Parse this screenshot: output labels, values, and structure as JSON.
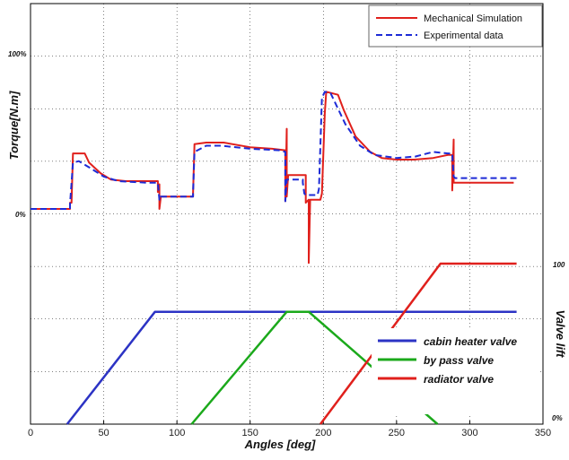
{
  "chart_data": {
    "type": "line",
    "xlabel": "Angles [deg]",
    "ylabel": "Torque[N.m]",
    "ylabel_right": "Valve lift",
    "xlim": [
      0,
      350
    ],
    "x_ticks": [
      0,
      50,
      100,
      150,
      200,
      250,
      300,
      350
    ],
    "grid": true,
    "torque_panel": {
      "ylim": [
        -0.35,
        1.05
      ],
      "percent_labels": [
        "100%",
        "0%"
      ],
      "legend_position": "top-right",
      "series": [
        {
          "name": "Mechanical Simulation",
          "color": "#e0201c",
          "style": "solid",
          "points": [
            [
              0,
              0
            ],
            [
              27,
              0
            ],
            [
              27,
              0.04
            ],
            [
              28,
              0.04
            ],
            [
              29,
              0.36
            ],
            [
              37,
              0.36
            ],
            [
              40,
              0.3
            ],
            [
              48,
              0.23
            ],
            [
              55,
              0.19
            ],
            [
              65,
              0.18
            ],
            [
              87,
              0.18
            ],
            [
              87,
              0.11
            ],
            [
              88,
              0.16
            ],
            [
              88,
              0.0
            ],
            [
              89,
              0.08
            ],
            [
              111,
              0.08
            ],
            [
              111,
              0.1
            ],
            [
              112,
              0.42
            ],
            [
              120,
              0.43
            ],
            [
              132,
              0.43
            ],
            [
              150,
              0.4
            ],
            [
              165,
              0.39
            ],
            [
              174,
              0.38
            ],
            [
              174,
              0.05
            ],
            [
              175,
              0.52
            ],
            [
              175,
              0.08
            ],
            [
              176,
              0.22
            ],
            [
              188,
              0.22
            ],
            [
              188,
              0.04
            ],
            [
              190,
              0.06
            ],
            [
              190,
              -0.35
            ],
            [
              191,
              0.06
            ],
            [
              198,
              0.06
            ],
            [
              199,
              0.1
            ],
            [
              201,
              0.62
            ],
            [
              202,
              0.76
            ],
            [
              210,
              0.74
            ],
            [
              214,
              0.64
            ],
            [
              222,
              0.47
            ],
            [
              232,
              0.37
            ],
            [
              240,
              0.33
            ],
            [
              250,
              0.32
            ],
            [
              262,
              0.32
            ],
            [
              275,
              0.33
            ],
            [
              285,
              0.35
            ],
            [
              288,
              0.35
            ],
            [
              288,
              0.12
            ],
            [
              289,
              0.45
            ],
            [
              289,
              0.17
            ],
            [
              290,
              0.17
            ],
            [
              330,
              0.17
            ]
          ]
        },
        {
          "name": "Experimental data",
          "color": "#1d2bd6",
          "style": "dashed",
          "points": [
            [
              0,
              0
            ],
            [
              27,
              0
            ],
            [
              27,
              0.03
            ],
            [
              29,
              0.3
            ],
            [
              33,
              0.31
            ],
            [
              40,
              0.27
            ],
            [
              50,
              0.21
            ],
            [
              60,
              0.18
            ],
            [
              80,
              0.17
            ],
            [
              87,
              0.17
            ],
            [
              88,
              0.06
            ],
            [
              89,
              0.06
            ],
            [
              89,
              0.08
            ],
            [
              111,
              0.08
            ],
            [
              111,
              0.1
            ],
            [
              112,
              0.37
            ],
            [
              120,
              0.41
            ],
            [
              130,
              0.41
            ],
            [
              150,
              0.39
            ],
            [
              170,
              0.38
            ],
            [
              174,
              0.37
            ],
            [
              174,
              0.05
            ],
            [
              175,
              0.19
            ],
            [
              186,
              0.19
            ],
            [
              186,
              0.17
            ],
            [
              187,
              0.1
            ],
            [
              188,
              0.09
            ],
            [
              196,
              0.09
            ],
            [
              197,
              0.13
            ],
            [
              199,
              0.72
            ],
            [
              201,
              0.76
            ],
            [
              205,
              0.75
            ],
            [
              215,
              0.55
            ],
            [
              225,
              0.41
            ],
            [
              235,
              0.35
            ],
            [
              250,
              0.33
            ],
            [
              263,
              0.34
            ],
            [
              275,
              0.37
            ],
            [
              285,
              0.36
            ],
            [
              288,
              0.36
            ],
            [
              289,
              0.21
            ],
            [
              290,
              0.2
            ],
            [
              332,
              0.2
            ]
          ]
        }
      ]
    },
    "valve_panel": {
      "ylim": [
        0,
        1
      ],
      "percent_labels": [
        "100",
        "0%"
      ],
      "legend_position": "bottom-right",
      "series": [
        {
          "name": "cabin heater valve",
          "color": "#2c33c4",
          "points": [
            [
              25,
              0
            ],
            [
              85,
              0.7
            ],
            [
              332,
              0.7
            ]
          ]
        },
        {
          "name": "by pass valve",
          "color": "#1ba91b",
          "points": [
            [
              110,
              0
            ],
            [
              175,
              0.7
            ],
            [
              190,
              0.7
            ],
            [
              278,
              0
            ]
          ]
        },
        {
          "name": "radiator valve",
          "color": "#e0201c",
          "points": [
            [
              198,
              0
            ],
            [
              280,
              1.0
            ],
            [
              332,
              1.0
            ]
          ]
        }
      ]
    }
  }
}
